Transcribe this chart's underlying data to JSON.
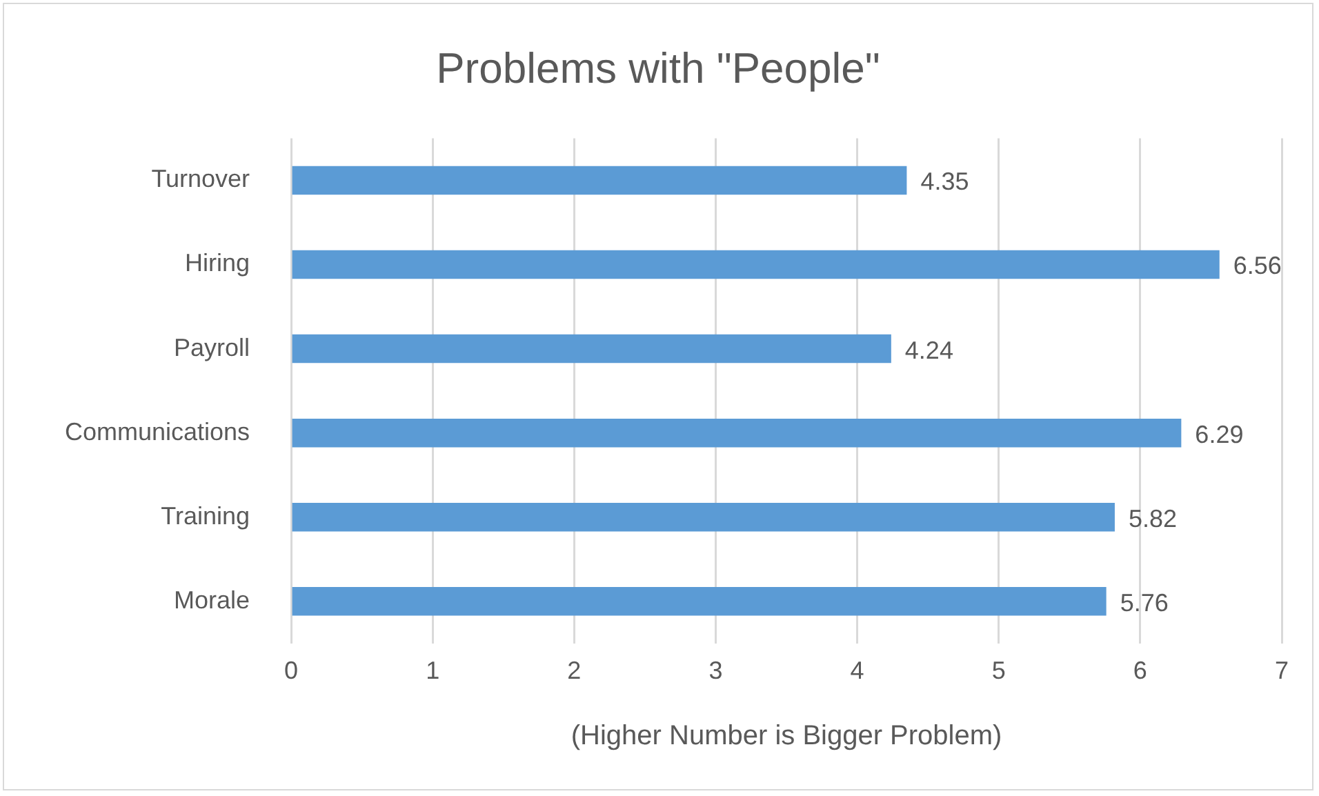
{
  "chart_data": {
    "type": "bar",
    "orientation": "horizontal",
    "title": "Problems with \"People\"",
    "xlabel": "(Higher Number is Bigger Problem)",
    "categories": [
      "Turnover",
      "Hiring",
      "Payroll",
      "Communications",
      "Training",
      "Morale"
    ],
    "values": [
      4.35,
      6.56,
      4.24,
      6.29,
      5.82,
      5.76
    ],
    "color": "#5b9bd5",
    "xlim": [
      0,
      7
    ],
    "xticks": [
      0,
      1,
      2,
      3,
      4,
      5,
      6,
      7
    ],
    "grid": "x",
    "data_labels": true,
    "legend": false
  }
}
